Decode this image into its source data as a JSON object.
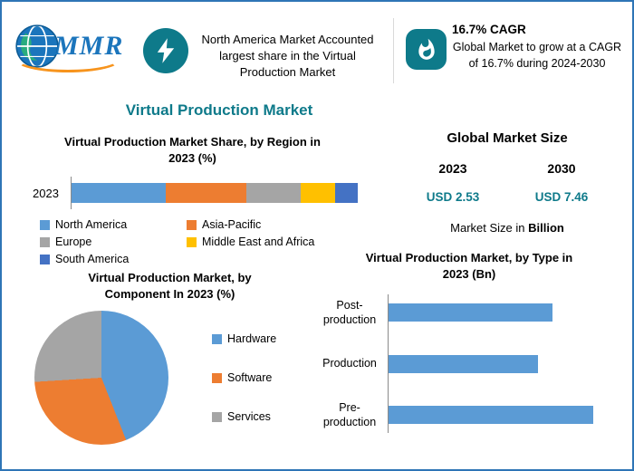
{
  "colors": {
    "accent_teal": "#0e7a8a",
    "logo_blue": "#1b75bc",
    "logo_orange": "#f7941d",
    "border_blue": "#2e75b6",
    "axis_gray": "#8a8a8a"
  },
  "header": {
    "logo_text": "MMR",
    "highlight": {
      "icon": "lightning-bolt-icon",
      "text": "North America Market Accounted largest share in the Virtual Production Market"
    },
    "cagr": {
      "icon": "flame-icon",
      "title": "16.7% CAGR",
      "text": "Global Market to grow at a CAGR of 16.7% during 2024-2030"
    }
  },
  "main_title": "Virtual Production Market",
  "market_size": {
    "title": "Global Market Size",
    "year_left": "2023",
    "year_right": "2030",
    "value_left": "USD 2.53",
    "value_right": "USD 7.46",
    "note_prefix": "Market Size in ",
    "note_bold": "Billion"
  },
  "chart_data": [
    {
      "id": "region_share",
      "type": "bar",
      "subtype": "stacked-horizontal",
      "title": "Virtual Production Market Share, by Region in 2023 (%)",
      "categories": [
        "2023"
      ],
      "series": [
        {
          "name": "North America",
          "color": "#5b9bd5",
          "values": [
            33
          ]
        },
        {
          "name": "Asia-Pacific",
          "color": "#ed7d31",
          "values": [
            28
          ]
        },
        {
          "name": "Europe",
          "color": "#a5a5a5",
          "values": [
            19
          ]
        },
        {
          "name": "Middle East and Africa",
          "color": "#ffc000",
          "values": [
            12
          ]
        },
        {
          "name": "South America",
          "color": "#4472c4",
          "values": [
            8
          ]
        }
      ],
      "xlim": [
        0,
        100
      ],
      "legend_position": "bottom",
      "grid": false
    },
    {
      "id": "component_share",
      "type": "pie",
      "title": "Virtual Production Market, by Component In 2023 (%)",
      "labels": [
        "Hardware",
        "Software",
        "Services"
      ],
      "values": [
        44,
        30,
        26
      ],
      "colors": [
        "#5b9bd5",
        "#ed7d31",
        "#a5a5a5"
      ],
      "start_angle": 0,
      "legend_position": "right"
    },
    {
      "id": "type_size",
      "type": "bar",
      "subtype": "horizontal",
      "title": "Virtual Production Market, by Type in 2023 (Bn)",
      "categories": [
        "Post-production",
        "Production",
        "Pre-production"
      ],
      "values": [
        0.8,
        0.73,
        1.0
      ],
      "color": "#5b9bd5",
      "xlim": [
        0,
        1.1
      ],
      "grid": false
    }
  ]
}
